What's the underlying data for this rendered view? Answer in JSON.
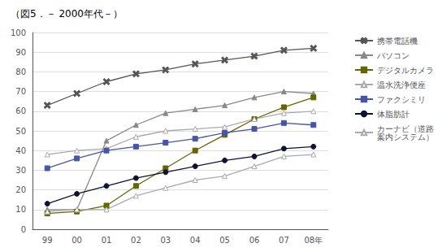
{
  "chart_data": {
    "type": "line",
    "title": "（図5．－ 2000年代－）",
    "categories": [
      "99",
      "00",
      "01",
      "02",
      "03",
      "04",
      "05",
      "06",
      "07",
      "08年"
    ],
    "series": [
      {
        "name": "携帯電話機",
        "color": "#555555",
        "marker": "x",
        "line_style": "solid",
        "values": [
          63,
          69,
          75,
          79,
          81,
          84,
          86,
          88,
          91,
          92
        ]
      },
      {
        "name": "パソコン",
        "color": "#888888",
        "marker": "triangle",
        "line_style": "solid",
        "values": [
          10,
          10,
          45,
          53,
          59,
          61,
          63,
          67,
          70,
          69
        ]
      },
      {
        "name": "デジタルカメラ",
        "color": "#666600",
        "marker": "square",
        "line_style": "solid",
        "values": [
          8,
          9,
          12,
          22,
          31,
          40,
          48,
          56,
          62,
          67
        ]
      },
      {
        "name": "温水洗浄便座",
        "color": "#aaaaaa",
        "marker": "triangle-open",
        "line_style": "solid",
        "values": [
          38,
          40,
          41,
          47,
          50,
          51,
          52,
          56,
          59,
          60
        ]
      },
      {
        "name": "ファクシミリ",
        "color": "#4455aa",
        "marker": "square",
        "line_style": "solid",
        "values": [
          31,
          36,
          40,
          42,
          44,
          46,
          49,
          51,
          54,
          53
        ]
      },
      {
        "name": "体脂肪計",
        "color": "#111133",
        "marker": "circle",
        "line_style": "solid",
        "values": [
          13,
          18,
          22,
          26,
          29,
          32,
          35,
          37,
          41,
          42
        ]
      },
      {
        "name": "カーナビ（道路\n案内システム）",
        "color": "#aaaaaa",
        "marker": "triangle-open",
        "line_style": "solid",
        "values": [
          9,
          10,
          10,
          17,
          21,
          25,
          27,
          32,
          37,
          38
        ]
      }
    ],
    "ylim": [
      0,
      100
    ],
    "yticks": [
      0,
      10,
      20,
      30,
      40,
      50,
      60,
      70,
      80,
      90,
      100
    ],
    "grid": true,
    "legend": "right"
  }
}
